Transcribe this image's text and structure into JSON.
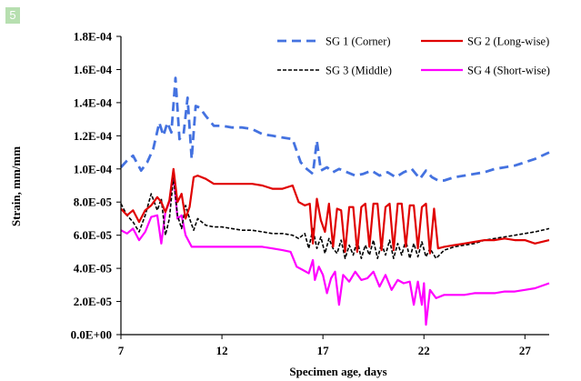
{
  "badge": "5",
  "chart_data": {
    "type": "line",
    "title": "",
    "xlabel": "Specimen age, days",
    "ylabel": "Strain, mm/mm",
    "xlim": [
      7,
      28.2
    ],
    "ylim": [
      0,
      0.00018
    ],
    "xticks": [
      7,
      12,
      17,
      22,
      27
    ],
    "xtick_labels": [
      "7",
      "12",
      "17",
      "22",
      "27"
    ],
    "yticks": [
      0,
      2e-05,
      4e-05,
      6e-05,
      8e-05,
      0.0001,
      0.00012,
      0.00014,
      0.00016,
      0.00018
    ],
    "ytick_labels": [
      "0.0E+00",
      "2.0E-05",
      "4.0E-05",
      "6.0E-05",
      "8.0E-05",
      "1.0E-04",
      "1.2E-04",
      "1.4E-04",
      "1.6E-04",
      "1.8E-04"
    ],
    "grid": false,
    "legend_position": "top-right",
    "series": [
      {
        "name": "SG 1 (Corner)",
        "color": "#4472e0",
        "dash": "dashed",
        "x": [
          7.0,
          7.3,
          7.6,
          8.0,
          8.3,
          8.6,
          8.9,
          9.1,
          9.3,
          9.5,
          9.7,
          9.9,
          10.1,
          10.3,
          10.5,
          10.7,
          10.9,
          11.2,
          11.6,
          12.0,
          12.5,
          13.0,
          13.5,
          14.0,
          14.5,
          15.0,
          15.5,
          15.9,
          16.2,
          16.5,
          16.7,
          16.9,
          17.2,
          17.5,
          17.8,
          18.2,
          18.6,
          19.0,
          19.4,
          19.8,
          20.2,
          20.6,
          21.0,
          21.4,
          21.8,
          22.1,
          22.4,
          22.7,
          23.0,
          23.5,
          24.0,
          24.5,
          25.0,
          25.5,
          26.0,
          26.5,
          27.0,
          27.5,
          28.2
        ],
        "y": [
          0.000101,
          0.000105,
          0.000108,
          9.9e-05,
          0.000104,
          0.000112,
          0.000128,
          0.00012,
          0.000128,
          0.000122,
          0.000155,
          0.000118,
          0.000121,
          0.000143,
          0.000106,
          0.000138,
          0.000137,
          0.000132,
          0.000126,
          0.000126,
          0.000125,
          0.000125,
          0.000124,
          0.000121,
          0.00012,
          0.000119,
          0.000118,
          0.000104,
          0.0001,
          9.7e-05,
          0.000117,
          9.9e-05,
          0.000101,
          9.8e-05,
          0.0001,
          9.8e-05,
          9.6e-05,
          9.7e-05,
          9.9e-05,
          9.6e-05,
          9.8e-05,
          9.5e-05,
          9.8e-05,
          0.0001,
          9.4e-05,
          9.9e-05,
          9.5e-05,
          9.3e-05,
          9.3e-05,
          9.5e-05,
          9.6e-05,
          9.7e-05,
          9.8e-05,
          0.0001,
          0.000101,
          0.000102,
          0.000104,
          0.000106,
          0.00011
        ]
      },
      {
        "name": "SG 2 (Long-wise)",
        "color": "#e00000",
        "dash": "solid",
        "x": [
          7.0,
          7.3,
          7.6,
          7.9,
          8.2,
          8.5,
          8.8,
          9.0,
          9.2,
          9.4,
          9.6,
          9.8,
          10.0,
          10.2,
          10.4,
          10.6,
          10.8,
          11.2,
          11.6,
          12.0,
          12.5,
          13.0,
          13.5,
          14.0,
          14.5,
          15.0,
          15.5,
          15.8,
          16.1,
          16.35,
          16.5,
          16.7,
          16.9,
          17.1,
          17.3,
          17.5,
          17.7,
          17.9,
          18.1,
          18.3,
          18.5,
          18.7,
          18.9,
          19.1,
          19.3,
          19.5,
          19.7,
          19.9,
          20.1,
          20.3,
          20.5,
          20.7,
          20.9,
          21.1,
          21.3,
          21.5,
          21.7,
          21.9,
          22.1,
          22.3,
          22.5,
          22.7,
          23.0,
          23.5,
          24.0,
          24.5,
          25.0,
          25.5,
          26.0,
          26.5,
          27.0,
          27.5,
          28.2
        ],
        "y": [
          7.6e-05,
          7.2e-05,
          7.5e-05,
          6.8e-05,
          7.5e-05,
          7.8e-05,
          8.3e-05,
          8e-05,
          7.4e-05,
          8.1e-05,
          0.0001,
          8e-05,
          8.5e-05,
          7e-05,
          7.7e-05,
          9.5e-05,
          9.6e-05,
          9.4e-05,
          9.1e-05,
          9.1e-05,
          9.1e-05,
          9.1e-05,
          9.1e-05,
          9e-05,
          8.8e-05,
          8.8e-05,
          9e-05,
          8e-05,
          7.8e-05,
          7.9e-05,
          5.5e-05,
          8.2e-05,
          6.9e-05,
          6.2e-05,
          7.9e-05,
          5.3e-05,
          7.6e-05,
          7.5e-05,
          5e-05,
          7.7e-05,
          7.7e-05,
          5e-05,
          7.7e-05,
          7.9e-05,
          5.3e-05,
          7.9e-05,
          7.9e-05,
          5.1e-05,
          7.7e-05,
          7.9e-05,
          5.1e-05,
          7.9e-05,
          7.9e-05,
          5.3e-05,
          7.8e-05,
          7.8e-05,
          5.2e-05,
          7.7e-05,
          7.9e-05,
          4.9e-05,
          7.6e-05,
          5.2e-05,
          5.3e-05,
          5.4e-05,
          5.5e-05,
          5.6e-05,
          5.7e-05,
          5.7e-05,
          5.8e-05,
          5.7e-05,
          5.7e-05,
          5.5e-05,
          5.7e-05
        ]
      },
      {
        "name": "SG 3 (Middle)",
        "color": "#000000",
        "dash": "dotted",
        "x": [
          7.0,
          7.3,
          7.6,
          7.9,
          8.2,
          8.5,
          8.8,
          9.0,
          9.2,
          9.4,
          9.6,
          9.8,
          10.0,
          10.2,
          10.4,
          10.6,
          10.8,
          11.2,
          11.6,
          12.0,
          12.5,
          13.0,
          13.5,
          14.0,
          14.5,
          15.0,
          15.5,
          15.8,
          16.1,
          16.3,
          16.5,
          16.7,
          16.9,
          17.1,
          17.3,
          17.5,
          17.7,
          17.9,
          18.1,
          18.3,
          18.5,
          18.7,
          18.9,
          19.1,
          19.3,
          19.5,
          19.7,
          19.9,
          20.1,
          20.3,
          20.5,
          20.7,
          20.9,
          21.1,
          21.3,
          21.5,
          21.7,
          21.9,
          22.1,
          22.3,
          22.6,
          23.0,
          23.5,
          24.0,
          24.5,
          25.0,
          25.5,
          26.0,
          26.5,
          27.0,
          27.5,
          28.2
        ],
        "y": [
          7.9e-05,
          7.2e-05,
          6.8e-05,
          6.2e-05,
          7.2e-05,
          8.5e-05,
          7.5e-05,
          8.2e-05,
          6e-05,
          7e-05,
          9.5e-05,
          7.2e-05,
          6.4e-05,
          7.8e-05,
          7e-05,
          6.3e-05,
          7e-05,
          6.6e-05,
          6.5e-05,
          6.5e-05,
          6.4e-05,
          6.3e-05,
          6.3e-05,
          6.2e-05,
          6.1e-05,
          6.1e-05,
          6e-05,
          5.8e-05,
          6.1e-05,
          5.2e-05,
          6.4e-05,
          5.2e-05,
          5.9e-05,
          4.9e-05,
          5.8e-05,
          5.2e-05,
          4.9e-05,
          5.7e-05,
          4.6e-05,
          5.4e-05,
          4.8e-05,
          5.7e-05,
          4.6e-05,
          5.4e-05,
          4.8e-05,
          5.7e-05,
          4.6e-05,
          5.5e-05,
          4.8e-05,
          5.7e-05,
          4.6e-05,
          5.5e-05,
          4.8e-05,
          5.7e-05,
          4.6e-05,
          5.5e-05,
          4.7e-05,
          5.6e-05,
          4.7e-05,
          5.2e-05,
          4.6e-05,
          5.1e-05,
          5.3e-05,
          5.4e-05,
          5.5e-05,
          5.7e-05,
          5.8e-05,
          5.9e-05,
          6e-05,
          6.1e-05,
          6.2e-05,
          6.4e-05
        ]
      },
      {
        "name": "SG 4 (Short-wise)",
        "color": "#ff00ff",
        "dash": "solid",
        "x": [
          7.0,
          7.3,
          7.6,
          7.9,
          8.2,
          8.5,
          8.8,
          9.0,
          9.2,
          9.4,
          9.6,
          9.8,
          10.0,
          10.2,
          10.5,
          10.8,
          11.2,
          11.6,
          12.0,
          12.5,
          13.0,
          13.5,
          14.0,
          14.5,
          15.0,
          15.4,
          15.7,
          16.0,
          16.3,
          16.5,
          16.6,
          16.8,
          17.0,
          17.2,
          17.4,
          17.6,
          17.8,
          18.0,
          18.3,
          18.6,
          18.9,
          19.2,
          19.5,
          19.8,
          20.1,
          20.4,
          20.7,
          21.0,
          21.3,
          21.5,
          21.7,
          21.9,
          22.0,
          22.1,
          22.3,
          22.6,
          23.0,
          23.5,
          24.0,
          24.5,
          25.0,
          25.5,
          26.0,
          26.5,
          27.0,
          27.5,
          28.2
        ],
        "y": [
          6.3e-05,
          6.1e-05,
          6.4e-05,
          5.7e-05,
          6.2e-05,
          7.1e-05,
          7.2e-05,
          5.5e-05,
          7.4e-05,
          8e-05,
          9.8e-05,
          7e-05,
          7.2e-05,
          6e-05,
          5.3e-05,
          5.3e-05,
          5.3e-05,
          5.3e-05,
          5.3e-05,
          5.3e-05,
          5.3e-05,
          5.3e-05,
          5.3e-05,
          5.2e-05,
          5.1e-05,
          5e-05,
          4.1e-05,
          3.9e-05,
          3.7e-05,
          4.5e-05,
          3.3e-05,
          4.1e-05,
          3.6e-05,
          2.5e-05,
          3.4e-05,
          3.8e-05,
          1.8e-05,
          3.6e-05,
          3.2e-05,
          3.8e-05,
          3.3e-05,
          3.4e-05,
          3.8e-05,
          2.9e-05,
          3.6e-05,
          2.7e-05,
          3.3e-05,
          3.1e-05,
          3.2e-05,
          1.8e-05,
          3.2e-05,
          1.8e-05,
          3.1e-05,
          6e-06,
          2.7e-05,
          2.2e-05,
          2.4e-05,
          2.4e-05,
          2.4e-05,
          2.5e-05,
          2.5e-05,
          2.5e-05,
          2.6e-05,
          2.6e-05,
          2.7e-05,
          2.8e-05,
          3.1e-05
        ]
      }
    ]
  }
}
